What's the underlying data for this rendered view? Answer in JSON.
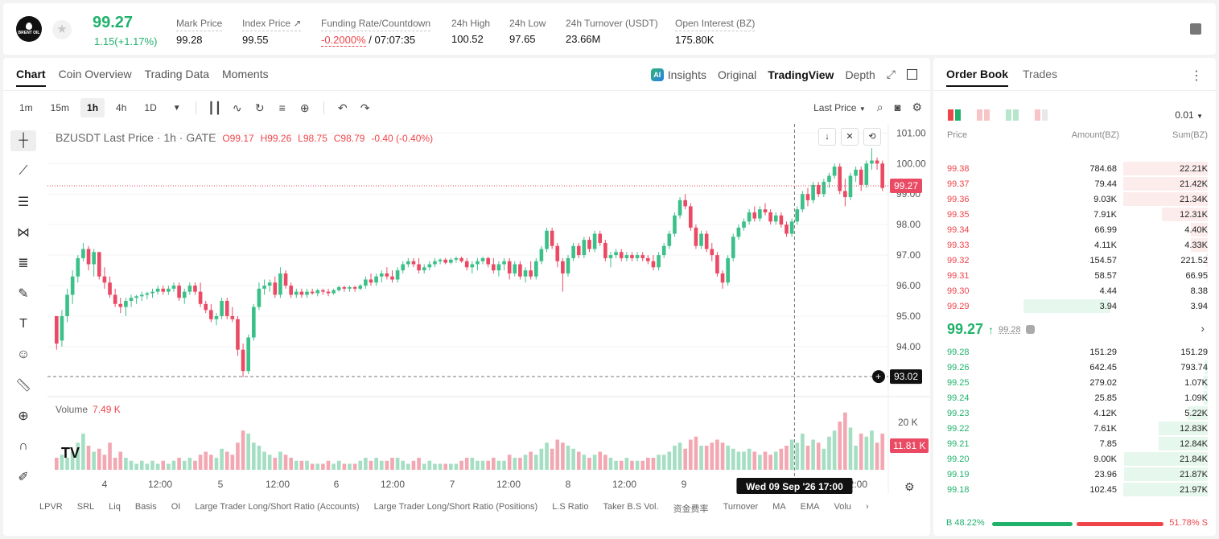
{
  "header": {
    "logo_text": "BRENT OIL",
    "last_price": "99.27",
    "change": "1.15(+1.17%)",
    "stats": [
      {
        "label": "Mark Price",
        "value": "99.28"
      },
      {
        "label": "Index Price ↗",
        "value": "99.55"
      },
      {
        "label": "Funding Rate/Countdown",
        "value_red": "-0.2000%",
        "value": " / 07:07:35"
      },
      {
        "label": "24h High",
        "value": "100.52"
      },
      {
        "label": "24h Low",
        "value": "97.65"
      },
      {
        "label": "24h Turnover (USDT)",
        "value": "23.66M"
      },
      {
        "label": "Open Interest (BZ)",
        "value": "175.80K"
      }
    ]
  },
  "chart_tabs": [
    "Chart",
    "Coin Overview",
    "Trading Data",
    "Moments"
  ],
  "view_options": {
    "insights": "Insights",
    "original": "Original",
    "tradingview": "TradingView",
    "depth": "Depth"
  },
  "timeframes": [
    "1m",
    "15m",
    "1h",
    "4h",
    "1D"
  ],
  "active_timeframe": "1h",
  "price_source": "Last Price",
  "legend": {
    "symbol": "BZUSDT Last Price · 1h · GATE",
    "o": "O99.17",
    "h": "H99.26",
    "l": "L98.75",
    "c": "C98.79",
    "chg": "-0.40 (-0.40%)"
  },
  "volume_legend": {
    "label": "Volume",
    "value": "7.49 K"
  },
  "indicators": [
    "LPVR",
    "SRL",
    "Liq",
    "Basis",
    "OI",
    "Large Trader Long/Short Ratio (Accounts)",
    "Large Trader Long/Short Ratio (Positions)",
    "L.S Ratio",
    "Taker B.S Vol.",
    "资金费率",
    "Turnover",
    "MA",
    "EMA",
    "Volu"
  ],
  "chart_data": {
    "type": "candlestick",
    "y_ticks": [
      101.0,
      100.0,
      99.0,
      98.0,
      97.0,
      96.0,
      95.0,
      94.0
    ],
    "ylim": [
      92.6,
      101.3
    ],
    "x_ticks": [
      "4",
      "12:00",
      "5",
      "12:00",
      "6",
      "12:00",
      "7",
      "12:00",
      "8",
      "12:00",
      "9",
      "12:00"
    ],
    "current_price": "99.27",
    "cursor_price": "93.02",
    "cursor_time": "Wed 09 Sep '26   17:00",
    "volume_axis": [
      "20 K",
      "10 K"
    ],
    "volume_current": "11.81 K",
    "watermark": "TV",
    "candles": [
      [
        95.0,
        95.0,
        93.9,
        94.1,
        4
      ],
      [
        94.2,
        95.2,
        94.0,
        95.0,
        5
      ],
      [
        95.0,
        95.9,
        94.8,
        95.7,
        4
      ],
      [
        95.7,
        96.5,
        95.4,
        96.3,
        6
      ],
      [
        96.3,
        97.0,
        96.1,
        96.9,
        9
      ],
      [
        96.9,
        97.4,
        96.8,
        97.2,
        12
      ],
      [
        97.2,
        97.3,
        96.5,
        96.7,
        8
      ],
      [
        96.7,
        97.2,
        96.3,
        97.1,
        6
      ],
      [
        97.1,
        97.1,
        96.2,
        96.3,
        7
      ],
      [
        96.3,
        96.6,
        95.9,
        96.1,
        5
      ],
      [
        96.1,
        96.3,
        95.6,
        95.7,
        9
      ],
      [
        95.7,
        95.9,
        95.3,
        95.4,
        4
      ],
      [
        95.4,
        95.6,
        95.1,
        95.3,
        6
      ],
      [
        95.3,
        95.6,
        95.0,
        95.5,
        4
      ],
      [
        95.5,
        95.7,
        95.3,
        95.6,
        3
      ],
      [
        95.6,
        95.7,
        95.4,
        95.65,
        2
      ],
      [
        95.65,
        95.8,
        95.5,
        95.7,
        3
      ],
      [
        95.7,
        95.8,
        95.55,
        95.75,
        2
      ],
      [
        95.75,
        95.9,
        95.6,
        95.8,
        3
      ],
      [
        95.8,
        96.0,
        95.7,
        95.9,
        2
      ],
      [
        95.9,
        96.0,
        95.7,
        95.8,
        3
      ],
      [
        95.8,
        96.0,
        95.7,
        95.9,
        2
      ],
      [
        95.9,
        96.1,
        95.8,
        96.0,
        3
      ],
      [
        96.0,
        96.1,
        95.5,
        95.6,
        4
      ],
      [
        95.6,
        95.9,
        95.4,
        95.8,
        3
      ],
      [
        95.8,
        96.1,
        95.7,
        96.0,
        4
      ],
      [
        96.0,
        96.1,
        95.7,
        95.8,
        3
      ],
      [
        95.8,
        96.1,
        95.3,
        95.4,
        5
      ],
      [
        95.4,
        95.5,
        95.1,
        95.2,
        6
      ],
      [
        95.2,
        95.4,
        94.8,
        94.9,
        5
      ],
      [
        94.9,
        95.1,
        94.7,
        95.0,
        4
      ],
      [
        95.0,
        95.6,
        94.9,
        95.5,
        7
      ],
      [
        95.5,
        95.6,
        94.9,
        95.0,
        6
      ],
      [
        95.0,
        95.3,
        94.8,
        94.9,
        5
      ],
      [
        94.9,
        95.0,
        93.7,
        93.9,
        9
      ],
      [
        93.9,
        94.1,
        93.0,
        93.2,
        13
      ],
      [
        93.2,
        94.4,
        93.1,
        94.3,
        12
      ],
      [
        94.3,
        95.4,
        94.2,
        95.3,
        9
      ],
      [
        95.3,
        96.1,
        95.2,
        95.9,
        8
      ],
      [
        95.9,
        96.2,
        95.7,
        96.0,
        6
      ],
      [
        96.0,
        96.2,
        95.8,
        96.1,
        5
      ],
      [
        96.1,
        96.3,
        95.6,
        95.7,
        4
      ],
      [
        95.7,
        96.6,
        95.6,
        96.4,
        6
      ],
      [
        96.4,
        96.5,
        95.9,
        96.0,
        5
      ],
      [
        96.0,
        96.1,
        95.6,
        95.7,
        4
      ],
      [
        95.7,
        95.9,
        95.6,
        95.8,
        3
      ],
      [
        95.8,
        95.9,
        95.6,
        95.7,
        3
      ],
      [
        95.7,
        95.9,
        95.6,
        95.8,
        3
      ],
      [
        95.8,
        95.9,
        95.7,
        95.75,
        2
      ],
      [
        95.75,
        95.9,
        95.65,
        95.85,
        2
      ],
      [
        95.85,
        95.9,
        95.7,
        95.8,
        2
      ],
      [
        95.8,
        95.9,
        95.65,
        95.75,
        3
      ],
      [
        95.75,
        95.9,
        95.7,
        95.85,
        2
      ],
      [
        95.85,
        96.0,
        95.8,
        95.95,
        3
      ],
      [
        95.95,
        96.0,
        95.8,
        95.9,
        2
      ],
      [
        95.9,
        96.0,
        95.8,
        95.95,
        2
      ],
      [
        95.95,
        96.0,
        95.8,
        95.9,
        2
      ],
      [
        95.9,
        96.05,
        95.85,
        96.0,
        3
      ],
      [
        96.0,
        96.3,
        95.9,
        96.2,
        4
      ],
      [
        96.2,
        96.4,
        96.0,
        96.1,
        3
      ],
      [
        96.1,
        96.4,
        96.0,
        96.3,
        4
      ],
      [
        96.3,
        96.5,
        96.1,
        96.4,
        3
      ],
      [
        96.4,
        96.6,
        96.2,
        96.3,
        3
      ],
      [
        96.3,
        96.5,
        96.1,
        96.2,
        4
      ],
      [
        96.2,
        96.6,
        96.1,
        96.5,
        4
      ],
      [
        96.5,
        96.8,
        96.4,
        96.7,
        3
      ],
      [
        96.7,
        96.9,
        96.6,
        96.8,
        2
      ],
      [
        96.8,
        96.9,
        96.6,
        96.7,
        3
      ],
      [
        96.7,
        96.9,
        96.4,
        96.5,
        4
      ],
      [
        96.5,
        96.7,
        96.4,
        96.6,
        2
      ],
      [
        96.6,
        96.8,
        96.5,
        96.7,
        3
      ],
      [
        96.7,
        96.9,
        96.6,
        96.8,
        2
      ],
      [
        96.8,
        96.9,
        96.7,
        96.85,
        2
      ],
      [
        96.85,
        96.9,
        96.7,
        96.75,
        2
      ],
      [
        96.75,
        96.9,
        96.7,
        96.85,
        2
      ],
      [
        96.85,
        96.95,
        96.75,
        96.9,
        2
      ],
      [
        96.9,
        96.95,
        96.75,
        96.8,
        3
      ],
      [
        96.8,
        96.9,
        96.5,
        96.6,
        4
      ],
      [
        96.6,
        96.8,
        96.4,
        96.7,
        4
      ],
      [
        96.7,
        96.9,
        96.5,
        96.8,
        3
      ],
      [
        96.8,
        96.95,
        96.7,
        96.9,
        3
      ],
      [
        96.9,
        96.95,
        96.6,
        96.7,
        3
      ],
      [
        96.7,
        96.9,
        96.4,
        96.5,
        4
      ],
      [
        96.5,
        96.8,
        96.3,
        96.7,
        3
      ],
      [
        96.7,
        96.9,
        96.5,
        96.8,
        3
      ],
      [
        96.8,
        96.9,
        96.2,
        96.4,
        5
      ],
      [
        96.4,
        96.8,
        96.3,
        96.7,
        4
      ],
      [
        96.7,
        96.8,
        96.2,
        96.3,
        4
      ],
      [
        96.3,
        96.6,
        96.1,
        96.5,
        5
      ],
      [
        96.5,
        96.8,
        96.2,
        96.3,
        6
      ],
      [
        96.3,
        96.9,
        96.2,
        96.8,
        5
      ],
      [
        96.8,
        97.3,
        96.7,
        97.2,
        7
      ],
      [
        97.2,
        97.9,
        97.1,
        97.8,
        9
      ],
      [
        97.8,
        97.9,
        97.2,
        97.3,
        7
      ],
      [
        97.3,
        97.4,
        96.6,
        96.8,
        10
      ],
      [
        96.8,
        96.9,
        95.8,
        96.4,
        9
      ],
      [
        96.4,
        97.0,
        96.3,
        96.9,
        8
      ],
      [
        96.9,
        97.4,
        96.8,
        97.3,
        7
      ],
      [
        97.3,
        97.4,
        96.9,
        97.0,
        6
      ],
      [
        97.0,
        97.6,
        96.9,
        97.5,
        5
      ],
      [
        97.5,
        97.6,
        97.1,
        97.2,
        4
      ],
      [
        97.2,
        97.8,
        97.1,
        97.7,
        5
      ],
      [
        97.7,
        97.8,
        97.3,
        97.4,
        6
      ],
      [
        97.4,
        97.5,
        96.8,
        96.9,
        5
      ],
      [
        96.9,
        97.1,
        96.6,
        97.0,
        4
      ],
      [
        97.0,
        97.2,
        96.9,
        97.1,
        3
      ],
      [
        97.1,
        97.2,
        96.8,
        96.9,
        3
      ],
      [
        96.9,
        97.1,
        96.8,
        97.0,
        4
      ],
      [
        97.0,
        97.1,
        96.8,
        96.9,
        3
      ],
      [
        96.9,
        97.1,
        96.8,
        97.0,
        3
      ],
      [
        97.0,
        97.1,
        96.8,
        96.9,
        3
      ],
      [
        96.9,
        97.0,
        96.7,
        96.8,
        4
      ],
      [
        96.8,
        97.0,
        96.5,
        96.6,
        4
      ],
      [
        96.6,
        97.1,
        96.5,
        97.0,
        5
      ],
      [
        97.0,
        97.4,
        96.9,
        97.3,
        5
      ],
      [
        97.3,
        97.8,
        97.2,
        97.7,
        6
      ],
      [
        97.7,
        98.4,
        97.6,
        98.3,
        8
      ],
      [
        98.3,
        98.9,
        98.2,
        98.8,
        9
      ],
      [
        98.8,
        99.0,
        98.5,
        98.6,
        7
      ],
      [
        98.6,
        98.7,
        97.8,
        97.9,
        10
      ],
      [
        97.9,
        98.0,
        97.2,
        97.3,
        11
      ],
      [
        97.3,
        97.8,
        97.2,
        97.7,
        8
      ],
      [
        97.7,
        97.8,
        97.1,
        97.2,
        8
      ],
      [
        97.2,
        97.4,
        96.8,
        97.0,
        9
      ],
      [
        97.0,
        97.1,
        96.3,
        96.4,
        10
      ],
      [
        96.4,
        96.5,
        95.9,
        96.1,
        9
      ],
      [
        96.1,
        97.0,
        96.0,
        96.9,
        8
      ],
      [
        96.9,
        97.7,
        96.8,
        97.6,
        7
      ],
      [
        97.6,
        98.0,
        97.5,
        97.9,
        6
      ],
      [
        97.9,
        98.2,
        97.8,
        98.1,
        6
      ],
      [
        98.1,
        98.5,
        98.0,
        98.4,
        7
      ],
      [
        98.4,
        98.6,
        98.1,
        98.2,
        6
      ],
      [
        98.2,
        98.6,
        98.1,
        98.5,
        5
      ],
      [
        98.5,
        98.7,
        98.3,
        98.4,
        6
      ],
      [
        98.4,
        98.5,
        98.0,
        98.1,
        5
      ],
      [
        98.1,
        98.4,
        98.0,
        98.3,
        6
      ],
      [
        98.3,
        98.4,
        97.9,
        98.0,
        7
      ],
      [
        98.0,
        98.1,
        97.6,
        97.7,
        8
      ],
      [
        97.7,
        98.2,
        97.6,
        98.1,
        10
      ],
      [
        98.1,
        98.6,
        98.0,
        98.5,
        9
      ],
      [
        98.5,
        99.1,
        98.4,
        99.0,
        12
      ],
      [
        99.0,
        99.2,
        98.6,
        98.8,
        8
      ],
      [
        98.8,
        99.4,
        98.7,
        99.3,
        10
      ],
      [
        99.3,
        99.4,
        98.9,
        99.0,
        9
      ],
      [
        99.0,
        99.5,
        98.9,
        99.4,
        7
      ],
      [
        99.4,
        99.7,
        99.2,
        99.6,
        11
      ],
      [
        99.6,
        100.0,
        99.5,
        99.9,
        13
      ],
      [
        99.9,
        100.0,
        99.0,
        99.1,
        16
      ],
      [
        99.1,
        99.5,
        98.6,
        98.9,
        19
      ],
      [
        98.9,
        99.7,
        98.8,
        99.6,
        14
      ],
      [
        99.6,
        99.9,
        99.4,
        99.8,
        8
      ],
      [
        99.8,
        99.9,
        99.1,
        99.3,
        12
      ],
      [
        99.3,
        100.1,
        99.2,
        100.0,
        11
      ],
      [
        100.0,
        100.5,
        99.8,
        100.1,
        13
      ],
      [
        100.1,
        100.2,
        99.8,
        100.0,
        9
      ],
      [
        100.0,
        100.1,
        99.1,
        99.2,
        12
      ]
    ]
  },
  "order_book": {
    "tabs": [
      "Order Book",
      "Trades"
    ],
    "precision": "0.01",
    "headers": {
      "price": "Price",
      "amount": "Amount(BZ)",
      "sum": "Sum(BZ)"
    },
    "asks": [
      {
        "p": "99.38",
        "a": "784.68",
        "s": "22.21K",
        "w": 105
      },
      {
        "p": "99.37",
        "a": "79.44",
        "s": "21.42K",
        "w": 105
      },
      {
        "p": "99.36",
        "a": "9.03K",
        "s": "21.34K",
        "w": 105
      },
      {
        "p": "99.35",
        "a": "7.91K",
        "s": "12.31K",
        "w": 57
      },
      {
        "p": "99.34",
        "a": "66.99",
        "s": "4.40K",
        "w": 21
      },
      {
        "p": "99.33",
        "a": "4.11K",
        "s": "4.33K",
        "w": 21
      },
      {
        "p": "99.32",
        "a": "154.57",
        "s": "221.52",
        "w": 2
      },
      {
        "p": "99.31",
        "a": "58.57",
        "s": "66.95",
        "w": 1
      },
      {
        "p": "99.30",
        "a": "4.44",
        "s": "8.38",
        "w": 0
      },
      {
        "p": "99.29",
        "a": "3.94",
        "s": "3.94",
        "w": 0
      }
    ],
    "mid_price": "99.27",
    "mid_arrow": "↑",
    "mid_mark": "99.28",
    "bids": [
      {
        "p": "99.28",
        "a": "151.29",
        "s": "151.29",
        "w": 1
      },
      {
        "p": "99.26",
        "a": "642.45",
        "s": "793.74",
        "w": 4
      },
      {
        "p": "99.25",
        "a": "279.02",
        "s": "1.07K",
        "w": 5
      },
      {
        "p": "99.24",
        "a": "25.85",
        "s": "1.09K",
        "w": 5
      },
      {
        "p": "99.23",
        "a": "4.12K",
        "s": "5.22K",
        "w": 25
      },
      {
        "p": "99.22",
        "a": "7.61K",
        "s": "12.83K",
        "w": 61
      },
      {
        "p": "99.21",
        "a": "7.85",
        "s": "12.84K",
        "w": 61
      },
      {
        "p": "99.20",
        "a": "9.00K",
        "s": "21.84K",
        "w": 104
      },
      {
        "p": "99.19",
        "a": "23.96",
        "s": "21.87K",
        "w": 104
      },
      {
        "p": "99.18",
        "a": "102.45",
        "s": "21.97K",
        "w": 105
      }
    ],
    "buy_ratio": "B 48.22%",
    "sell_ratio": "51.78% S"
  }
}
